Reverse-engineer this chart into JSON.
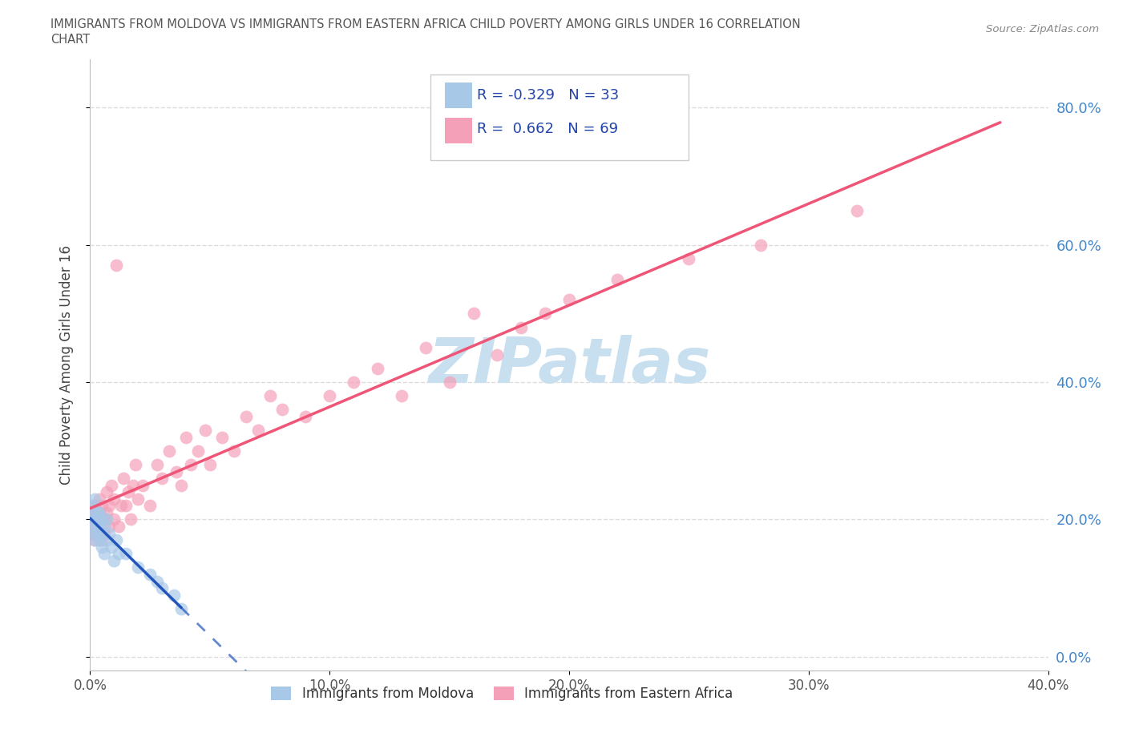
{
  "title_line1": "IMMIGRANTS FROM MOLDOVA VS IMMIGRANTS FROM EASTERN AFRICA CHILD POVERTY AMONG GIRLS UNDER 16 CORRELATION",
  "title_line2": "CHART",
  "source_text": "Source: ZipAtlas.com",
  "ylabel": "Child Poverty Among Girls Under 16",
  "r_moldova": -0.329,
  "n_moldova": 33,
  "r_eastern_africa": 0.662,
  "n_eastern_africa": 69,
  "moldova_color": "#a8c8e8",
  "eastern_africa_color": "#f4a0b8",
  "moldova_line_color": "#2255bb",
  "eastern_africa_line_color": "#ee5577",
  "watermark_text": "ZIPatlas",
  "watermark_color": "#c8dff0",
  "background_color": "#ffffff",
  "grid_color": "#dddddd",
  "xlim": [
    0.0,
    0.4
  ],
  "ylim": [
    -0.02,
    0.87
  ],
  "yticks": [
    0.0,
    0.2,
    0.4,
    0.6,
    0.8
  ],
  "xticks": [
    0.0,
    0.1,
    0.2,
    0.3,
    0.4
  ],
  "moldova_x": [
    0.001,
    0.001,
    0.001,
    0.002,
    0.002,
    0.002,
    0.002,
    0.003,
    0.003,
    0.003,
    0.003,
    0.004,
    0.004,
    0.004,
    0.005,
    0.005,
    0.005,
    0.006,
    0.006,
    0.007,
    0.007,
    0.008,
    0.009,
    0.01,
    0.011,
    0.012,
    0.015,
    0.02,
    0.025,
    0.028,
    0.03,
    0.035,
    0.038
  ],
  "moldova_y": [
    0.21,
    0.19,
    0.22,
    0.18,
    0.2,
    0.23,
    0.17,
    0.19,
    0.21,
    0.2,
    0.18,
    0.17,
    0.21,
    0.19,
    0.16,
    0.2,
    0.18,
    0.15,
    0.19,
    0.17,
    0.2,
    0.18,
    0.16,
    0.14,
    0.17,
    0.15,
    0.15,
    0.13,
    0.12,
    0.11,
    0.1,
    0.09,
    0.07
  ],
  "eastern_africa_x": [
    0.001,
    0.001,
    0.001,
    0.002,
    0.002,
    0.002,
    0.003,
    0.003,
    0.003,
    0.004,
    0.004,
    0.004,
    0.004,
    0.005,
    0.005,
    0.005,
    0.006,
    0.006,
    0.007,
    0.007,
    0.008,
    0.008,
    0.009,
    0.01,
    0.01,
    0.011,
    0.012,
    0.013,
    0.014,
    0.015,
    0.016,
    0.017,
    0.018,
    0.019,
    0.02,
    0.022,
    0.025,
    0.028,
    0.03,
    0.033,
    0.036,
    0.038,
    0.04,
    0.042,
    0.045,
    0.048,
    0.05,
    0.055,
    0.06,
    0.065,
    0.07,
    0.075,
    0.08,
    0.09,
    0.1,
    0.11,
    0.12,
    0.13,
    0.14,
    0.15,
    0.16,
    0.17,
    0.18,
    0.19,
    0.2,
    0.22,
    0.25,
    0.28,
    0.32
  ],
  "eastern_africa_y": [
    0.18,
    0.21,
    0.19,
    0.17,
    0.2,
    0.22,
    0.19,
    0.21,
    0.18,
    0.2,
    0.23,
    0.19,
    0.21,
    0.17,
    0.2,
    0.22,
    0.18,
    0.2,
    0.21,
    0.24,
    0.19,
    0.22,
    0.25,
    0.2,
    0.23,
    0.57,
    0.19,
    0.22,
    0.26,
    0.22,
    0.24,
    0.2,
    0.25,
    0.28,
    0.23,
    0.25,
    0.22,
    0.28,
    0.26,
    0.3,
    0.27,
    0.25,
    0.32,
    0.28,
    0.3,
    0.33,
    0.28,
    0.32,
    0.3,
    0.35,
    0.33,
    0.38,
    0.36,
    0.35,
    0.38,
    0.4,
    0.42,
    0.38,
    0.45,
    0.4,
    0.5,
    0.44,
    0.48,
    0.5,
    0.52,
    0.55,
    0.58,
    0.6,
    0.65
  ],
  "legend_r_moldova_label": "R = -0.329   N = 33",
  "legend_r_eastern_label": "R =  0.662   N = 69",
  "legend_moldova_label": "Immigrants from Moldova",
  "legend_eastern_label": "Immigrants from Eastern Africa"
}
